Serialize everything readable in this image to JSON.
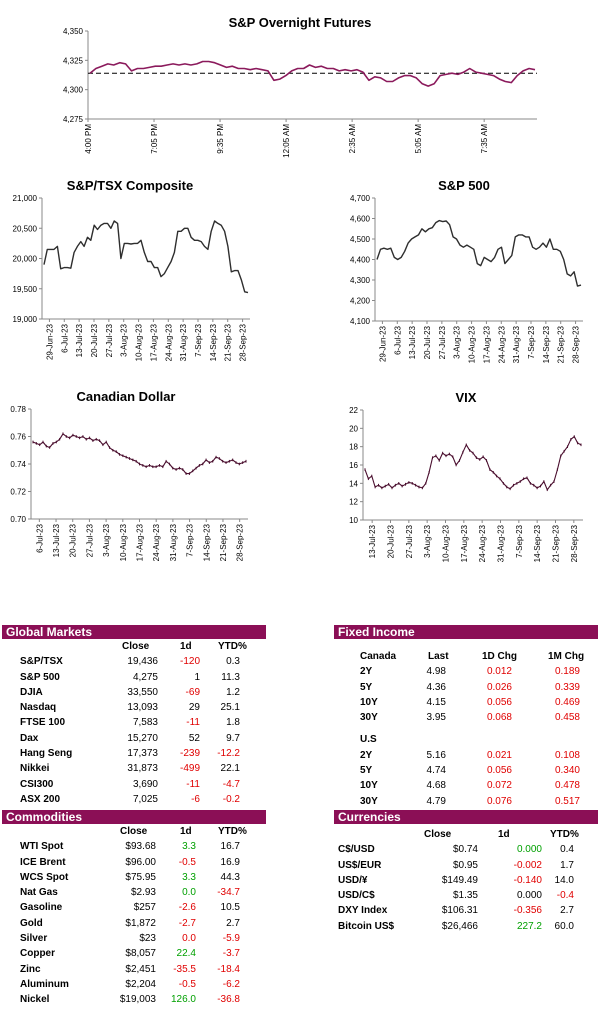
{
  "colors": {
    "accent": "#8b0f56",
    "line": "#2e2e2e",
    "positive": "#00a000",
    "negative": "#e00000"
  },
  "chart_data": [
    {
      "id": "futures",
      "type": "line",
      "title": "S&P Overnight Futures",
      "x_tick_labels": [
        "4:00 PM",
        "7:05 PM",
        "9:35 PM",
        "12:05 AM",
        "2:35 AM",
        "5:05 AM",
        "7:35 AM"
      ],
      "ylim": [
        4275,
        4350
      ],
      "y_ticks": [
        "4,275",
        "4,300",
        "4,325",
        "4,350"
      ],
      "reference_value": 4314,
      "series": [
        {
          "values": [
            4314,
            4318,
            4320,
            4322,
            4321,
            4323,
            4322,
            4316,
            4318,
            4318,
            4319,
            4320,
            4320,
            4321,
            4322,
            4321,
            4322,
            4321,
            4322,
            4324,
            4324,
            4323,
            4321,
            4319,
            4320,
            4318,
            4318,
            4317,
            4318,
            4317,
            4316,
            4308,
            4309,
            4312,
            4316,
            4318,
            4318,
            4321,
            4319,
            4320,
            4318,
            4318,
            4316,
            4317,
            4316,
            4317,
            4315,
            4308,
            4311,
            4310,
            4307,
            4307,
            4310,
            4312,
            4312,
            4310,
            4305,
            4303,
            4305,
            4312,
            4313,
            4314,
            4313,
            4315,
            4318,
            4315,
            4314,
            4313,
            4312,
            4309,
            4307,
            4306,
            4312,
            4316,
            4318,
            4317
          ]
        }
      ]
    },
    {
      "id": "tsx",
      "type": "line",
      "title": "S&P/TSX Composite",
      "x_tick_labels": [
        "29-Jun-23",
        "6-Jul-23",
        "13-Jul-23",
        "20-Jul-23",
        "27-Jul-23",
        "3-Aug-23",
        "10-Aug-23",
        "17-Aug-23",
        "24-Aug-23",
        "31-Aug-23",
        "7-Sep-23",
        "14-Sep-23",
        "21-Sep-23",
        "28-Sep-23"
      ],
      "ylim": [
        19000,
        21000
      ],
      "y_ticks": [
        "19,000",
        "19,500",
        "20,000",
        "20,500",
        "21,000"
      ],
      "series": [
        {
          "values": [
            19900,
            20150,
            20150,
            20150,
            20200,
            19830,
            19850,
            19850,
            19840,
            20100,
            20200,
            20280,
            20200,
            20350,
            20300,
            20550,
            20480,
            20550,
            20580,
            20580,
            20500,
            20620,
            20580,
            20000,
            20250,
            20250,
            20240,
            20250,
            20250,
            20300,
            20100,
            19950,
            19950,
            19850,
            19850,
            19700,
            19750,
            19850,
            19950,
            20100,
            20450,
            20450,
            20500,
            20500,
            20350,
            20300,
            20300,
            20280,
            20200,
            20150,
            20450,
            20620,
            20580,
            20550,
            20450,
            20200,
            19780,
            19800,
            19800,
            19650,
            19450,
            19436
          ]
        }
      ]
    },
    {
      "id": "sp500",
      "type": "line",
      "title": "S&P 500",
      "x_tick_labels": [
        "29-Jun-23",
        "6-Jul-23",
        "13-Jul-23",
        "20-Jul-23",
        "27-Jul-23",
        "3-Aug-23",
        "10-Aug-23",
        "17-Aug-23",
        "24-Aug-23",
        "31-Aug-23",
        "7-Sep-23",
        "14-Sep-23",
        "21-Sep-23",
        "28-Sep-23"
      ],
      "ylim": [
        4100,
        4700
      ],
      "y_ticks": [
        "4,100",
        "4,200",
        "4,300",
        "4,400",
        "4,500",
        "4,600",
        "4,700"
      ],
      "series": [
        {
          "values": [
            4400,
            4450,
            4455,
            4450,
            4455,
            4410,
            4400,
            4410,
            4440,
            4480,
            4500,
            4510,
            4520,
            4550,
            4535,
            4550,
            4555,
            4580,
            4590,
            4585,
            4588,
            4570,
            4510,
            4500,
            4470,
            4460,
            4470,
            4460,
            4450,
            4380,
            4370,
            4410,
            4400,
            4390,
            4410,
            4450,
            4460,
            4380,
            4400,
            4420,
            4510,
            4520,
            4520,
            4510,
            4510,
            4460,
            4450,
            4460,
            4480,
            4460,
            4500,
            4450,
            4450,
            4440,
            4400,
            4330,
            4320,
            4340,
            4270,
            4275
          ]
        }
      ]
    },
    {
      "id": "cad",
      "type": "line",
      "title": "Canadian Dollar",
      "x_tick_labels": [
        "6-Jul-23",
        "13-Jul-23",
        "20-Jul-23",
        "27-Jul-23",
        "3-Aug-23",
        "10-Aug-23",
        "17-Aug-23",
        "24-Aug-23",
        "31-Aug-23",
        "7-Sep-23",
        "14-Sep-23",
        "21-Sep-23",
        "28-Sep-23"
      ],
      "ylim": [
        0.7,
        0.78
      ],
      "y_ticks": [
        "0.70",
        "0.72",
        "0.74",
        "0.76",
        "0.78"
      ],
      "series": [
        {
          "values": [
            0.756,
            0.755,
            0.754,
            0.756,
            0.753,
            0.752,
            0.755,
            0.756,
            0.758,
            0.762,
            0.76,
            0.759,
            0.761,
            0.76,
            0.759,
            0.76,
            0.758,
            0.759,
            0.757,
            0.758,
            0.757,
            0.754,
            0.756,
            0.752,
            0.75,
            0.749,
            0.747,
            0.746,
            0.745,
            0.744,
            0.743,
            0.742,
            0.74,
            0.739,
            0.738,
            0.739,
            0.738,
            0.738,
            0.739,
            0.738,
            0.742,
            0.74,
            0.737,
            0.736,
            0.737,
            0.736,
            0.733,
            0.733,
            0.735,
            0.737,
            0.739,
            0.74,
            0.743,
            0.741,
            0.742,
            0.745,
            0.744,
            0.742,
            0.741,
            0.742,
            0.743,
            0.741,
            0.74,
            0.741,
            0.742
          ]
        }
      ]
    },
    {
      "id": "vix",
      "type": "line",
      "title": "VIX",
      "x_tick_labels": [
        "13-Jul-23",
        "20-Jul-23",
        "27-Jul-23",
        "3-Aug-23",
        "10-Aug-23",
        "17-Aug-23",
        "24-Aug-23",
        "31-Aug-23",
        "7-Sep-23",
        "14-Sep-23",
        "21-Sep-23",
        "28-Sep-23"
      ],
      "ylim": [
        10,
        22
      ],
      "y_ticks": [
        "10",
        "12",
        "14",
        "16",
        "18",
        "20",
        "22"
      ],
      "series": [
        {
          "values": [
            15.5,
            14.5,
            14.8,
            13.6,
            13.8,
            13.5,
            13.7,
            13.9,
            13.5,
            13.8,
            14.0,
            13.7,
            13.9,
            14.1,
            14.0,
            13.8,
            13.6,
            13.5,
            14.0,
            15.2,
            16.8,
            17.0,
            16.5,
            17.3,
            17.0,
            17.2,
            16.9,
            16.0,
            16.5,
            17.4,
            18.2,
            17.6,
            17.3,
            16.8,
            16.6,
            16.9,
            16.5,
            15.5,
            15.2,
            14.8,
            14.5,
            14.0,
            13.6,
            13.4,
            13.8,
            14.0,
            14.2,
            14.5,
            14.6,
            14.0,
            13.8,
            13.5,
            13.7,
            14.2,
            13.3,
            13.8,
            14.2,
            15.5,
            17.0,
            17.5,
            18.0,
            18.8,
            19.1,
            18.4,
            18.2
          ]
        }
      ]
    }
  ],
  "global_markets": {
    "title": "Global Markets",
    "headers": [
      "Close",
      "1d",
      "YTD%"
    ],
    "rows": [
      {
        "name": "S&P/TSX",
        "close": "19,436",
        "d1": "-120",
        "d1_color": "neg",
        "ytd": "0.3",
        "ytd_color": "neu"
      },
      {
        "name": "S&P 500",
        "close": "4,275",
        "d1": "1",
        "d1_color": "neu",
        "ytd": "11.3",
        "ytd_color": "neu"
      },
      {
        "name": "DJIA",
        "close": "33,550",
        "d1": "-69",
        "d1_color": "neg",
        "ytd": "1.2",
        "ytd_color": "neu"
      },
      {
        "name": "Nasdaq",
        "close": "13,093",
        "d1": "29",
        "d1_color": "neu",
        "ytd": "25.1",
        "ytd_color": "neu"
      },
      {
        "name": "FTSE 100",
        "close": "7,583",
        "d1": "-11",
        "d1_color": "neg",
        "ytd": "1.8",
        "ytd_color": "neu"
      },
      {
        "name": "Dax",
        "close": "15,270",
        "d1": "52",
        "d1_color": "neu",
        "ytd": "9.7",
        "ytd_color": "neu"
      },
      {
        "name": "Hang Seng",
        "close": "17,373",
        "d1": "-239",
        "d1_color": "neg",
        "ytd": "-12.2",
        "ytd_color": "neg"
      },
      {
        "name": "Nikkei",
        "close": "31,873",
        "d1": "-499",
        "d1_color": "neg",
        "ytd": "22.1",
        "ytd_color": "neu"
      },
      {
        "name": "CSI300",
        "close": "3,690",
        "d1": "-11",
        "d1_color": "neg",
        "ytd": "-4.7",
        "ytd_color": "neg"
      },
      {
        "name": "ASX 200",
        "close": "7,025",
        "d1": "-6",
        "d1_color": "neg",
        "ytd": "-0.2",
        "ytd_color": "neg"
      }
    ]
  },
  "commodities": {
    "title": "Commodities",
    "headers": [
      "Close",
      "1d",
      "YTD%"
    ],
    "rows": [
      {
        "name": "WTI Spot",
        "close": "$93.68",
        "d1": "3.3",
        "d1_color": "pos",
        "ytd": "16.7",
        "ytd_color": "neu"
      },
      {
        "name": "ICE Brent",
        "close": "$96.00",
        "d1": "-0.5",
        "d1_color": "neg",
        "ytd": "16.9",
        "ytd_color": "neu"
      },
      {
        "name": "WCS Spot",
        "close": "$75.95",
        "d1": "3.3",
        "d1_color": "pos",
        "ytd": "44.3",
        "ytd_color": "neu"
      },
      {
        "name": "Nat Gas",
        "close": "$2.93",
        "d1": "0.0",
        "d1_color": "pos",
        "ytd": "-34.7",
        "ytd_color": "neg"
      },
      {
        "name": "Gasoline",
        "close": "$257",
        "d1": "-2.6",
        "d1_color": "neg",
        "ytd": "10.5",
        "ytd_color": "neu"
      },
      {
        "name": "Gold",
        "close": "$1,872",
        "d1": "-2.7",
        "d1_color": "neg",
        "ytd": "2.7",
        "ytd_color": "neu"
      },
      {
        "name": "Silver",
        "close": "$23",
        "d1": "0.0",
        "d1_color": "neg",
        "ytd": "-5.9",
        "ytd_color": "neg"
      },
      {
        "name": "Copper",
        "close": "$8,057",
        "d1": "22.4",
        "d1_color": "pos",
        "ytd": "-3.7",
        "ytd_color": "neg"
      },
      {
        "name": "Zinc",
        "close": "$2,451",
        "d1": "-35.5",
        "d1_color": "neg",
        "ytd": "-18.4",
        "ytd_color": "neg"
      },
      {
        "name": "Aluminum",
        "close": "$2,204",
        "d1": "-0.5",
        "d1_color": "neg",
        "ytd": "-6.2",
        "ytd_color": "neg"
      },
      {
        "name": "Nickel",
        "close": "$19,003",
        "d1": "126.0",
        "d1_color": "pos",
        "ytd": "-36.8",
        "ytd_color": "neg"
      }
    ]
  },
  "fixed_income": {
    "title": "Fixed Income",
    "canada": {
      "label": "Canada",
      "headers": [
        "Last",
        "1D Chg",
        "1M Chg"
      ],
      "rows": [
        {
          "name": "2Y",
          "last": "4.98",
          "d1": "0.012",
          "m1": "0.189"
        },
        {
          "name": "5Y",
          "last": "4.36",
          "d1": "0.026",
          "m1": "0.339"
        },
        {
          "name": "10Y",
          "last": "4.15",
          "d1": "0.056",
          "m1": "0.469"
        },
        {
          "name": "30Y",
          "last": "3.95",
          "d1": "0.068",
          "m1": "0.458"
        }
      ]
    },
    "us": {
      "label": "U.S",
      "rows": [
        {
          "name": "2Y",
          "last": "5.16",
          "d1": "0.021",
          "m1": "0.108"
        },
        {
          "name": "5Y",
          "last": "4.74",
          "d1": "0.056",
          "m1": "0.340"
        },
        {
          "name": "10Y",
          "last": "4.68",
          "d1": "0.072",
          "m1": "0.478"
        },
        {
          "name": "30Y",
          "last": "4.79",
          "d1": "0.076",
          "m1": "0.517"
        }
      ]
    }
  },
  "currencies": {
    "title": "Currencies",
    "headers": [
      "Close",
      "1d",
      "YTD%"
    ],
    "rows": [
      {
        "name": "C$/USD",
        "close": "$0.74",
        "d1": "0.000",
        "d1_color": "pos",
        "ytd": "0.4",
        "ytd_color": "neu"
      },
      {
        "name": "US$/EUR",
        "close": "$0.95",
        "d1": "-0.002",
        "d1_color": "neg",
        "ytd": "1.7",
        "ytd_color": "neu"
      },
      {
        "name": "USD/¥",
        "close": "$149.49",
        "d1": "-0.140",
        "d1_color": "neg",
        "ytd": "14.0",
        "ytd_color": "neu"
      },
      {
        "name": "USD/C$",
        "close": "$1.35",
        "d1": "0.000",
        "d1_color": "neu",
        "ytd": "-0.4",
        "ytd_color": "neg"
      },
      {
        "name": "DXY Index",
        "close": "$106.31",
        "d1": "-0.356",
        "d1_color": "neg",
        "ytd": "2.7",
        "ytd_color": "neu"
      },
      {
        "name": "Bitcoin US$",
        "close": "$26,466",
        "d1": "227.2",
        "d1_color": "pos",
        "ytd": "60.0",
        "ytd_color": "neu"
      }
    ]
  }
}
